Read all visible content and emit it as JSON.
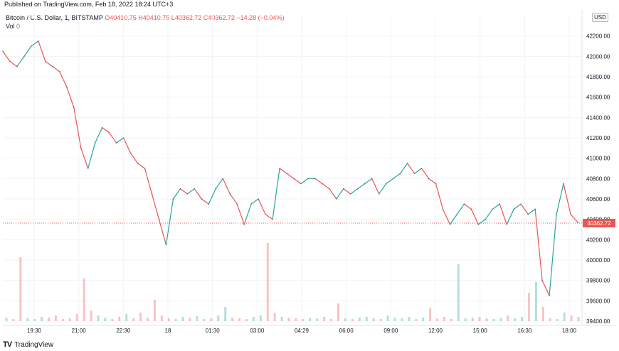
{
  "header": {
    "published": "Published on TradingView.com, Feb 18, 2022 18:24 UTC+3"
  },
  "legend": {
    "symbol": "Bitcoin / U.S. Dollar, 1, BITSTAMP",
    "ohlc": "O40410.75 H40410.75 L40362.72 C40362.72 −14.28 (−0.04%)",
    "vol_label": "Vol",
    "vol_value": "0"
  },
  "currency": "USD",
  "footer": {
    "brand": "TradingView",
    "logo": "tradingview-logo-icon"
  },
  "colors": {
    "up": "#26a69a",
    "down": "#ef5350",
    "grid": "#f0f3fa",
    "last_price_line": "#ef5350"
  },
  "chart_data": {
    "type": "line",
    "title": "",
    "xlabel": "",
    "ylabel": "",
    "ylim": [
      39400,
      42400
    ],
    "y_ticks": [
      "39400.00",
      "39600.00",
      "39800.00",
      "40000.00",
      "40200.00",
      "40400.00",
      "40600.00",
      "40800.00",
      "41000.00",
      "41200.00",
      "41400.00",
      "41600.00",
      "41800.00",
      "42000.00",
      "42200.00"
    ],
    "x_ticks": [
      "19:30",
      "21:00",
      "22:30",
      "18",
      "01:30",
      "03:00",
      "04:29",
      "06:00",
      "09:00",
      "12:00",
      "15:00",
      "16:30",
      "18:00"
    ],
    "last_price": "40362.72",
    "grid": true,
    "series": [
      {
        "values": [
          42050,
          41950,
          41900,
          42000,
          42100,
          42150,
          41950,
          41900,
          41850,
          41700,
          41500,
          41100,
          40900,
          41150,
          41300,
          41250,
          41150,
          41200,
          41050,
          40950,
          40900,
          40650,
          40400,
          40150,
          40600,
          40700,
          40650,
          40700,
          40600,
          40550,
          40700,
          40800,
          40650,
          40550,
          40350,
          40550,
          40600,
          40450,
          40400,
          40900,
          40850,
          40800,
          40750,
          40800,
          40800,
          40750,
          40700,
          40600,
          40700,
          40650,
          40700,
          40750,
          40800,
          40650,
          40750,
          40800,
          40850,
          40950,
          40850,
          40900,
          40800,
          40750,
          40500,
          40350,
          40450,
          40550,
          40500,
          40350,
          40400,
          40500,
          40550,
          40350,
          40500,
          40550,
          40450,
          40500,
          39800,
          39650,
          40450,
          40750,
          40450,
          40370
        ]
      }
    ],
    "volume": {
      "values": [
        5,
        3,
        90,
        4,
        3,
        6,
        5,
        8,
        3,
        4,
        10,
        60,
        15,
        8,
        5,
        3,
        6,
        10,
        4,
        12,
        5,
        30,
        8,
        4,
        3,
        6,
        5,
        7,
        3,
        4,
        8,
        20,
        5,
        4,
        3,
        6,
        8,
        110,
        12,
        6,
        5,
        4,
        3,
        5,
        4,
        6,
        3,
        25,
        4,
        3,
        5,
        6,
        4,
        3,
        8,
        5,
        4,
        6,
        3,
        5,
        18,
        4,
        6,
        3,
        80,
        4,
        5,
        6,
        4,
        3,
        5,
        8,
        4,
        6,
        40,
        55,
        20,
        4,
        3,
        12,
        8,
        6
      ]
    }
  }
}
